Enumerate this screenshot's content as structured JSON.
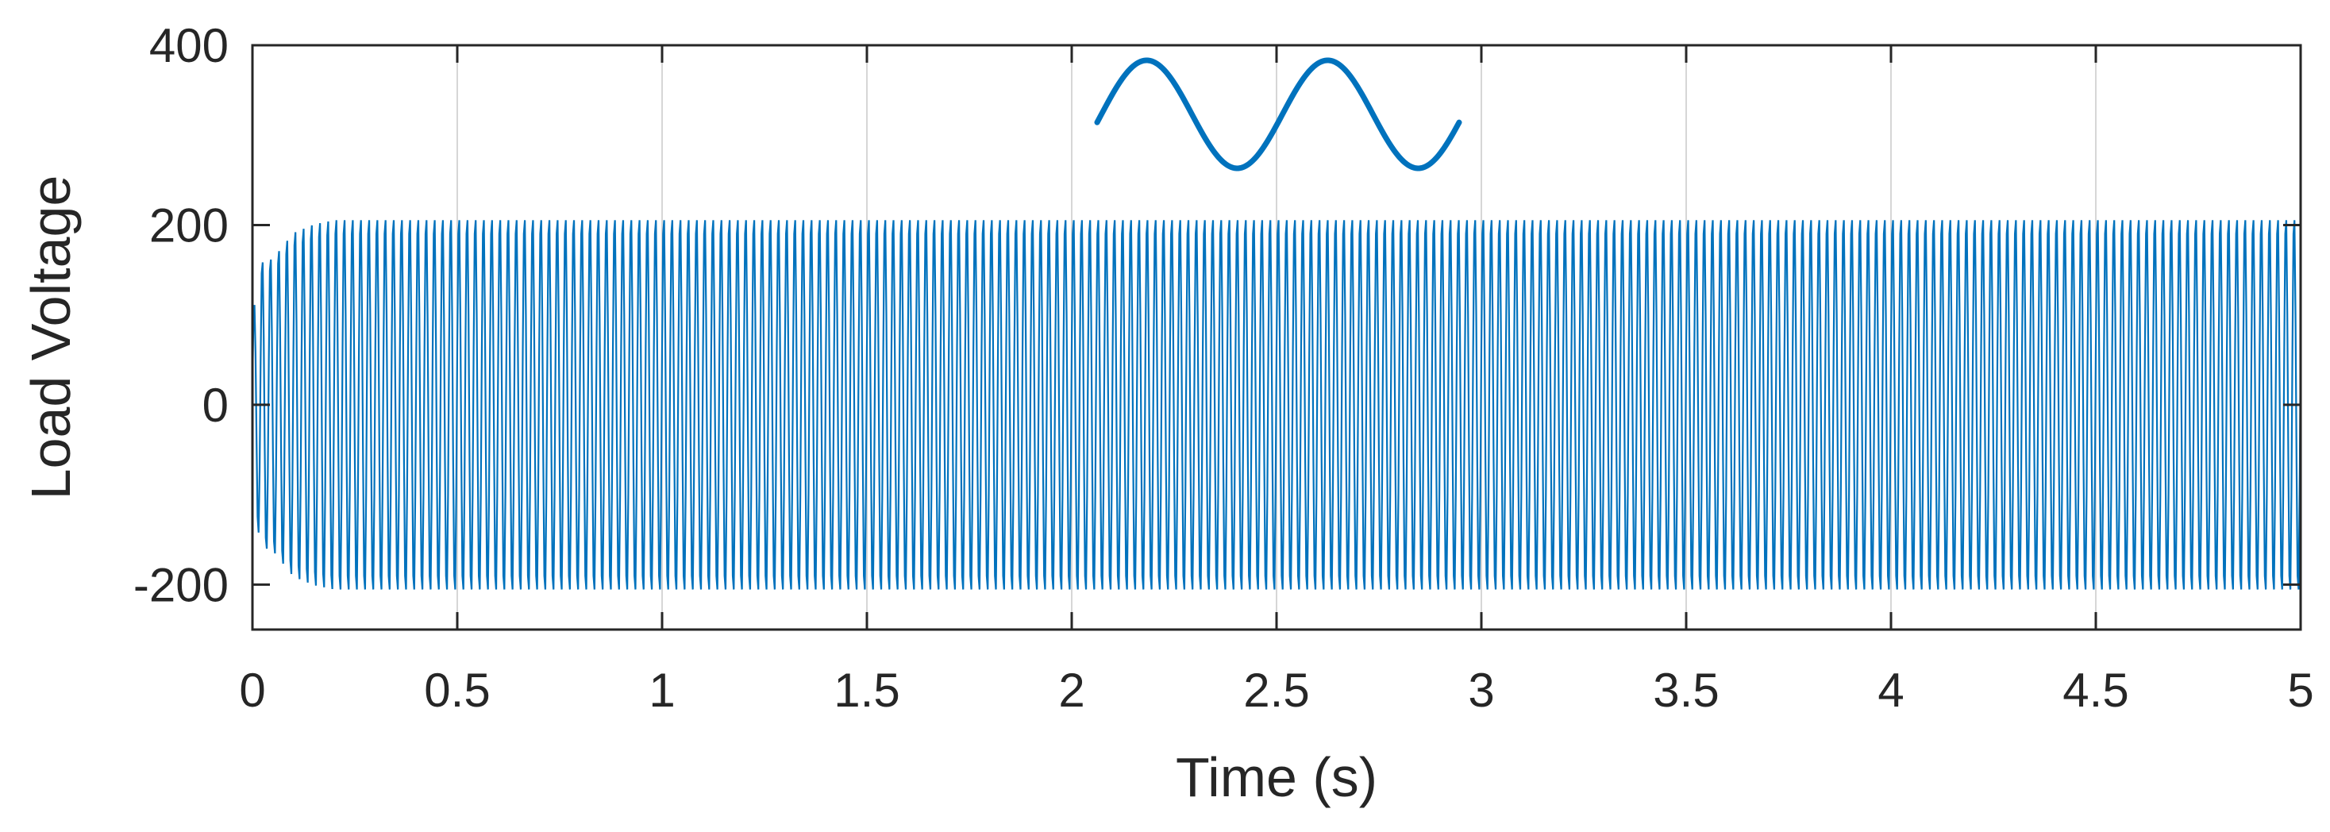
{
  "chart_data": {
    "type": "line",
    "xlabel": "Time (s)",
    "ylabel": "Load Voltage",
    "xlim": [
      0,
      5
    ],
    "ylim": [
      -250,
      400
    ],
    "xticks": [
      "0",
      "0.5",
      "1",
      "1.5",
      "2",
      "2.5",
      "3",
      "3.5",
      "4",
      "4.5",
      "5"
    ],
    "xtick_values": [
      0,
      0.5,
      1,
      1.5,
      2,
      2.5,
      3,
      3.5,
      4,
      4.5,
      5
    ],
    "yticks": [
      "400",
      "200",
      "0",
      "-200"
    ],
    "ytick_values": [
      400,
      200,
      0,
      -200
    ],
    "grid": false,
    "series": [
      {
        "color": "#0072BD",
        "description_values": {
          "waveform": "sinusoidal AC, oscillating rapidly",
          "startup_amplitude": 165,
          "steady_state_amplitude": 215,
          "settling_time_s": 0.2
        },
        "envelope": {
          "t": [
            0,
            0.02,
            0.05,
            0.1,
            0.15,
            0.2,
            0.3,
            5
          ],
          "amplitude": [
            100,
            165,
            170,
            200,
            210,
            215,
            215,
            215
          ]
        }
      }
    ],
    "inset": {
      "type": "line",
      "description": "zoomed sine wave",
      "color": "#0072BD",
      "cycles": 2
    }
  }
}
